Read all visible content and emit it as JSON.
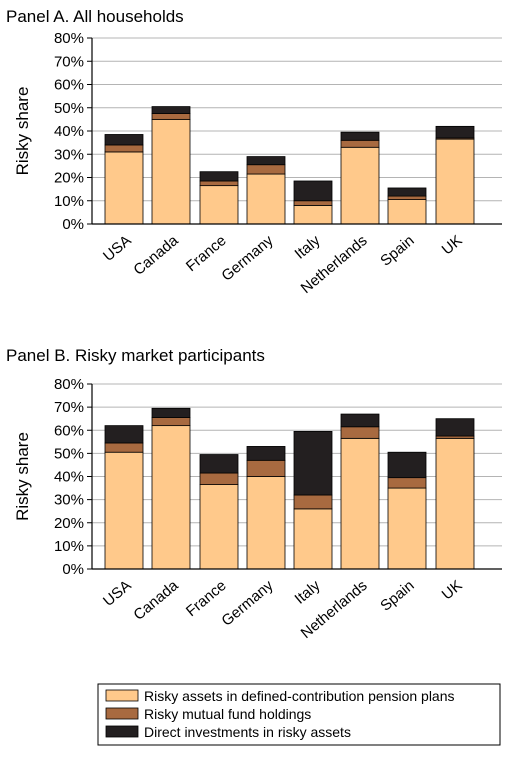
{
  "chart_data": [
    {
      "type": "bar",
      "stacked": true,
      "title": "Panel A. All households",
      "xlabel": "",
      "ylabel": "Risky share",
      "ylim": [
        0,
        80
      ],
      "yticks": [
        "0%",
        "10%",
        "20%",
        "30%",
        "40%",
        "50%",
        "60%",
        "70%",
        "80%"
      ],
      "grid": true,
      "categories": [
        "USA",
        "Canada",
        "France",
        "Germany",
        "Italy",
        "Netherlands",
        "Spain",
        "UK"
      ],
      "series": [
        {
          "name": "Risky assets in defined-contribution pension plans",
          "color": "#FFC98B",
          "values": [
            31,
            45,
            16.5,
            21.5,
            8,
            33,
            10.5,
            36.5
          ]
        },
        {
          "name": "Risky mutual fund holdings",
          "color": "#A86A40",
          "values": [
            3,
            2.5,
            2,
            4,
            2,
            3,
            1.5,
            0.5
          ]
        },
        {
          "name": "Direct investments in risky assets",
          "color": "#231F20",
          "values": [
            4.5,
            3,
            4,
            3.5,
            8.5,
            3.5,
            3.5,
            5
          ]
        }
      ]
    },
    {
      "type": "bar",
      "stacked": true,
      "title": "Panel B. Risky market participants",
      "xlabel": "",
      "ylabel": "Risky share",
      "ylim": [
        0,
        80
      ],
      "yticks": [
        "0%",
        "10%",
        "20%",
        "30%",
        "40%",
        "50%",
        "60%",
        "70%",
        "80%"
      ],
      "grid": true,
      "categories": [
        "USA",
        "Canada",
        "France",
        "Germany",
        "Italy",
        "Netherlands",
        "Spain",
        "UK"
      ],
      "series": [
        {
          "name": "Risky assets in defined-contribution pension plans",
          "color": "#FFC98B",
          "values": [
            50.5,
            62,
            36.5,
            40,
            26,
            56.5,
            35,
            56.5
          ]
        },
        {
          "name": "Risky mutual fund holdings",
          "color": "#A86A40",
          "values": [
            4,
            3.5,
            5,
            7,
            6,
            5,
            4.5,
            1
          ]
        },
        {
          "name": "Direct investments in risky assets",
          "color": "#231F20",
          "values": [
            7.5,
            4,
            8,
            6,
            27.5,
            5.5,
            11,
            7.5
          ]
        }
      ]
    }
  ],
  "legend": {
    "placement": "bottom-right",
    "items": [
      {
        "label": "Risky assets in defined-contribution pension plans",
        "color": "#FFC98B"
      },
      {
        "label": "Risky mutual fund holdings",
        "color": "#A86A40"
      },
      {
        "label": "Direct investments in risky assets",
        "color": "#231F20"
      }
    ]
  }
}
